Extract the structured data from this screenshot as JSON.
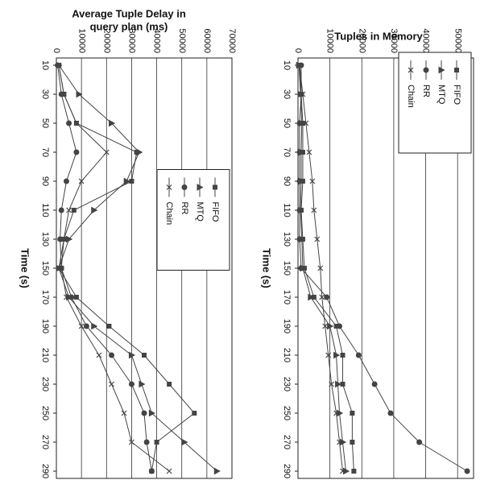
{
  "chart_data": [
    {
      "type": "line",
      "ylabel": [
        "Average Tuple Delay in",
        "query plan (ms)"
      ],
      "xlabel": "Time (s)",
      "x": [
        10,
        30,
        50,
        70,
        90,
        110,
        130,
        150,
        170,
        190,
        210,
        230,
        250,
        270,
        290
      ],
      "xlim": [
        5,
        295
      ],
      "xticks": [
        10,
        30,
        50,
        70,
        90,
        110,
        130,
        150,
        170,
        190,
        210,
        230,
        250,
        270,
        290
      ],
      "ylim": [
        0,
        70000
      ],
      "yticks": [
        0,
        10000,
        20000,
        30000,
        40000,
        50000,
        60000,
        70000
      ],
      "grid": true,
      "legend": "upper center",
      "series": [
        {
          "name": "FIFO",
          "color": "#444444",
          "marker": "square",
          "values": [
            1000,
            3000,
            8000,
            32000,
            30000,
            7000,
            3000,
            1000,
            8000,
            21000,
            35000,
            45000,
            55000,
            40000,
            38000
          ]
        },
        {
          "name": "MTQ",
          "color": "#444444",
          "marker": "triangle",
          "values": [
            1000,
            9000,
            22000,
            33000,
            28000,
            15000,
            5000,
            1000,
            5000,
            15000,
            30000,
            34000,
            38000,
            51000,
            64000
          ]
        },
        {
          "name": "RR",
          "color": "#444444",
          "marker": "circle",
          "values": [
            500,
            2000,
            5000,
            8000,
            4000,
            2000,
            1500,
            2000,
            6000,
            12000,
            22000,
            30000,
            35000,
            36000,
            38000
          ]
        },
        {
          "name": "Chain",
          "color": "#444444",
          "marker": "x",
          "values": [
            1000,
            3000,
            8000,
            20000,
            10000,
            5000,
            3000,
            2000,
            4000,
            10000,
            17000,
            22000,
            27000,
            30000,
            45000
          ]
        }
      ]
    },
    {
      "type": "line",
      "ylabel": [
        "Tuples in Memory"
      ],
      "xlabel": "Time (s)",
      "x": [
        10,
        30,
        50,
        70,
        90,
        110,
        130,
        150,
        170,
        190,
        210,
        230,
        250,
        270,
        290
      ],
      "xlim": [
        5,
        295
      ],
      "xticks": [
        10,
        30,
        50,
        70,
        90,
        110,
        130,
        150,
        170,
        190,
        210,
        230,
        250,
        270,
        290
      ],
      "ylim": [
        0,
        55000
      ],
      "yticks": [
        0,
        10000,
        20000,
        30000,
        40000,
        50000
      ],
      "grid": true,
      "legend": "upper left",
      "series": [
        {
          "name": "FIFO",
          "color": "#444444",
          "marker": "square",
          "values": [
            500,
            1000,
            1500,
            1500,
            1500,
            1000,
            1500,
            2000,
            5000,
            12000,
            14000,
            14000,
            17000,
            17000,
            17500
          ]
        },
        {
          "name": "MTQ",
          "color": "#444444",
          "marker": "triangle",
          "values": [
            300,
            800,
            1200,
            1000,
            1000,
            800,
            1200,
            1500,
            4000,
            10000,
            12000,
            12500,
            13000,
            14000,
            15000
          ]
        },
        {
          "name": "RR",
          "color": "#444444",
          "marker": "circle",
          "values": [
            1000,
            1000,
            500,
            500,
            500,
            500,
            500,
            1000,
            9000,
            13000,
            19000,
            24000,
            29000,
            38000,
            53000
          ]
        },
        {
          "name": "Chain",
          "color": "#444444",
          "marker": "x",
          "values": [
            500,
            1500,
            2500,
            3500,
            4500,
            5000,
            6000,
            7000,
            7500,
            8500,
            9500,
            10500,
            12000,
            13000,
            14000
          ]
        }
      ]
    }
  ]
}
